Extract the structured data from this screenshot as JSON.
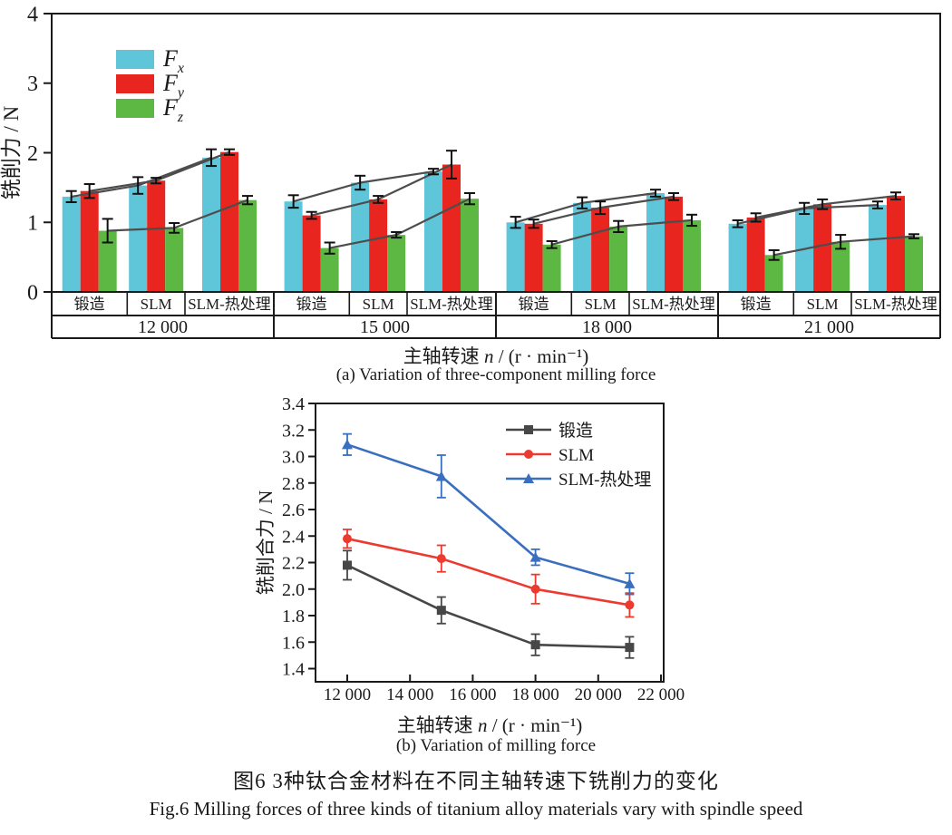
{
  "figure": {
    "caption_zh": "图6  3种钛合金材料在不同主轴转速下铣削力的变化",
    "caption_en": "Fig.6  Milling forces of three kinds of titanium alloy materials vary with spindle speed"
  },
  "chart_data": [
    {
      "id": "a",
      "type": "bar",
      "title": "(a) Variation of three-component milling force",
      "ylabel": "铣削力 / N",
      "xlabel_parts": {
        "pre": "主轴转速 ",
        "var": "n",
        "post": " / (r · min⁻¹)"
      },
      "ylim": [
        0,
        4
      ],
      "yticks": [
        0,
        1,
        2,
        3,
        4
      ],
      "grid": false,
      "legend_position": "upper-left-inside",
      "groups": [
        "12 000",
        "15 000",
        "18 000",
        "21 000"
      ],
      "materials": [
        "锻造",
        "SLM",
        "SLM-热处理"
      ],
      "trend_color": "#4d4d4d",
      "axis_color": "#1a1a1a",
      "series": [
        {
          "label_sym": "F",
          "label_sub": "x",
          "color": "#5fc6da",
          "values": [
            [
              1.37,
              1.53,
              1.93
            ],
            [
              1.3,
              1.57,
              1.73
            ],
            [
              1.0,
              1.28,
              1.42
            ],
            [
              0.98,
              1.2,
              1.25
            ]
          ],
          "errors": [
            [
              0.08,
              0.12,
              0.12
            ],
            [
              0.09,
              0.1,
              0.04
            ],
            [
              0.08,
              0.08,
              0.05
            ],
            [
              0.05,
              0.08,
              0.05
            ]
          ]
        },
        {
          "label_sym": "F",
          "label_sub": "y",
          "color": "#e8251e",
          "values": [
            [
              1.45,
              1.6,
              2.01
            ],
            [
              1.1,
              1.33,
              1.83
            ],
            [
              0.98,
              1.21,
              1.37
            ],
            [
              1.07,
              1.26,
              1.38
            ]
          ],
          "errors": [
            [
              0.1,
              0.04,
              0.04
            ],
            [
              0.05,
              0.05,
              0.2
            ],
            [
              0.06,
              0.09,
              0.05
            ],
            [
              0.06,
              0.07,
              0.05
            ]
          ]
        },
        {
          "label_sym": "F",
          "label_sub": "z",
          "color": "#5db843",
          "values": [
            [
              0.88,
              0.92,
              1.32
            ],
            [
              0.63,
              0.82,
              1.34
            ],
            [
              0.68,
              0.94,
              1.03
            ],
            [
              0.53,
              0.72,
              0.8
            ]
          ],
          "errors": [
            [
              0.17,
              0.07,
              0.06
            ],
            [
              0.08,
              0.04,
              0.08
            ],
            [
              0.05,
              0.08,
              0.08
            ],
            [
              0.07,
              0.1,
              0.03
            ]
          ]
        }
      ]
    },
    {
      "id": "b",
      "type": "line",
      "title": "(b) Variation of milling force",
      "ylabel": "铣削合力 / N",
      "xlabel_parts": {
        "pre": "主轴转速 ",
        "var": "n",
        "post": " / (r · min⁻¹)"
      },
      "ylim": [
        1.4,
        3.4
      ],
      "ytick_step": 0.2,
      "grid": false,
      "legend_position": "upper-right-inside",
      "x": [
        12000,
        15000,
        18000,
        21000
      ],
      "xticks": [
        12000,
        14000,
        16000,
        18000,
        20000,
        22000
      ],
      "xtick_labels": [
        "12 000",
        "14 000",
        "16 000",
        "18 000",
        "20 000",
        "22 000"
      ],
      "axis_color": "#1a1a1a",
      "series": [
        {
          "name": "锻造",
          "marker": "square",
          "color": "#474747",
          "values": [
            2.18,
            1.84,
            1.58,
            1.56
          ],
          "errors": [
            0.11,
            0.1,
            0.08,
            0.08
          ]
        },
        {
          "name": "SLM",
          "marker": "circle",
          "color": "#ed3a30",
          "values": [
            2.38,
            2.23,
            2.0,
            1.88
          ],
          "errors": [
            0.07,
            0.1,
            0.11,
            0.09
          ]
        },
        {
          "name": "SLM-热处理",
          "marker": "triangle",
          "color": "#3a6fc0",
          "values": [
            3.09,
            2.85,
            2.24,
            2.04
          ],
          "errors": [
            0.08,
            0.16,
            0.06,
            0.08
          ]
        }
      ]
    }
  ]
}
